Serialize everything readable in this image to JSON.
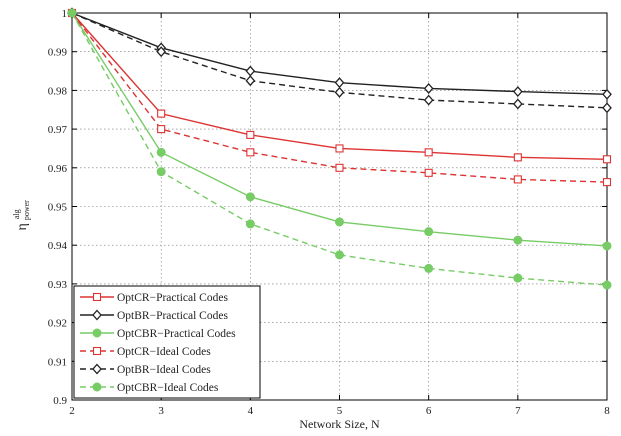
{
  "chart_data": {
    "type": "line",
    "title": "",
    "xlabel": "Network Size, N",
    "ylabel_main": "η",
    "ylabel_sup": "alg",
    "ylabel_sub": "power",
    "x": [
      2,
      3,
      4,
      5,
      6,
      7,
      8
    ],
    "xlim": [
      2,
      8
    ],
    "ylim": [
      0.9,
      1.0
    ],
    "xticks": [
      2,
      3,
      4,
      5,
      6,
      7,
      8
    ],
    "yticks": [
      0.9,
      0.91,
      0.92,
      0.93,
      0.94,
      0.95,
      0.96,
      0.97,
      0.98,
      0.99,
      1
    ],
    "ytick_labels": [
      "0.9",
      "0.91",
      "0.92",
      "0.93",
      "0.94",
      "0.95",
      "0.96",
      "0.97",
      "0.98",
      "0.99",
      "1"
    ],
    "grid": true,
    "legend_position": "bottom-left",
    "series": [
      {
        "name": "OptCR−Practical Codes",
        "color": "#dd3333",
        "dash": "solid",
        "marker": "square",
        "filled": false,
        "values": [
          1.0,
          0.974,
          0.9685,
          0.965,
          0.964,
          0.9627,
          0.9622
        ]
      },
      {
        "name": "OptBR−Practical Codes",
        "color": "#222222",
        "dash": "solid",
        "marker": "diamond",
        "filled": false,
        "values": [
          1.0,
          0.991,
          0.985,
          0.982,
          0.9805,
          0.9797,
          0.979
        ]
      },
      {
        "name": "OptCBR−Practical Codes",
        "color": "#77cc66",
        "dash": "solid",
        "marker": "circle",
        "filled": true,
        "values": [
          1.0,
          0.964,
          0.9525,
          0.946,
          0.9435,
          0.9413,
          0.9398
        ]
      },
      {
        "name": "OptCR−Ideal Codes",
        "color": "#dd3333",
        "dash": "dashed",
        "marker": "square",
        "filled": false,
        "values": [
          1.0,
          0.97,
          0.964,
          0.96,
          0.9587,
          0.957,
          0.9563
        ]
      },
      {
        "name": "OptBR−Ideal Codes",
        "color": "#222222",
        "dash": "dashed",
        "marker": "diamond",
        "filled": false,
        "values": [
          1.0,
          0.99,
          0.9825,
          0.9795,
          0.9775,
          0.9765,
          0.9755
        ]
      },
      {
        "name": "OptCBR−Ideal Codes",
        "color": "#77cc66",
        "dash": "dashed",
        "marker": "circle",
        "filled": true,
        "values": [
          1.0,
          0.959,
          0.9455,
          0.9375,
          0.934,
          0.9315,
          0.9297
        ]
      }
    ]
  }
}
